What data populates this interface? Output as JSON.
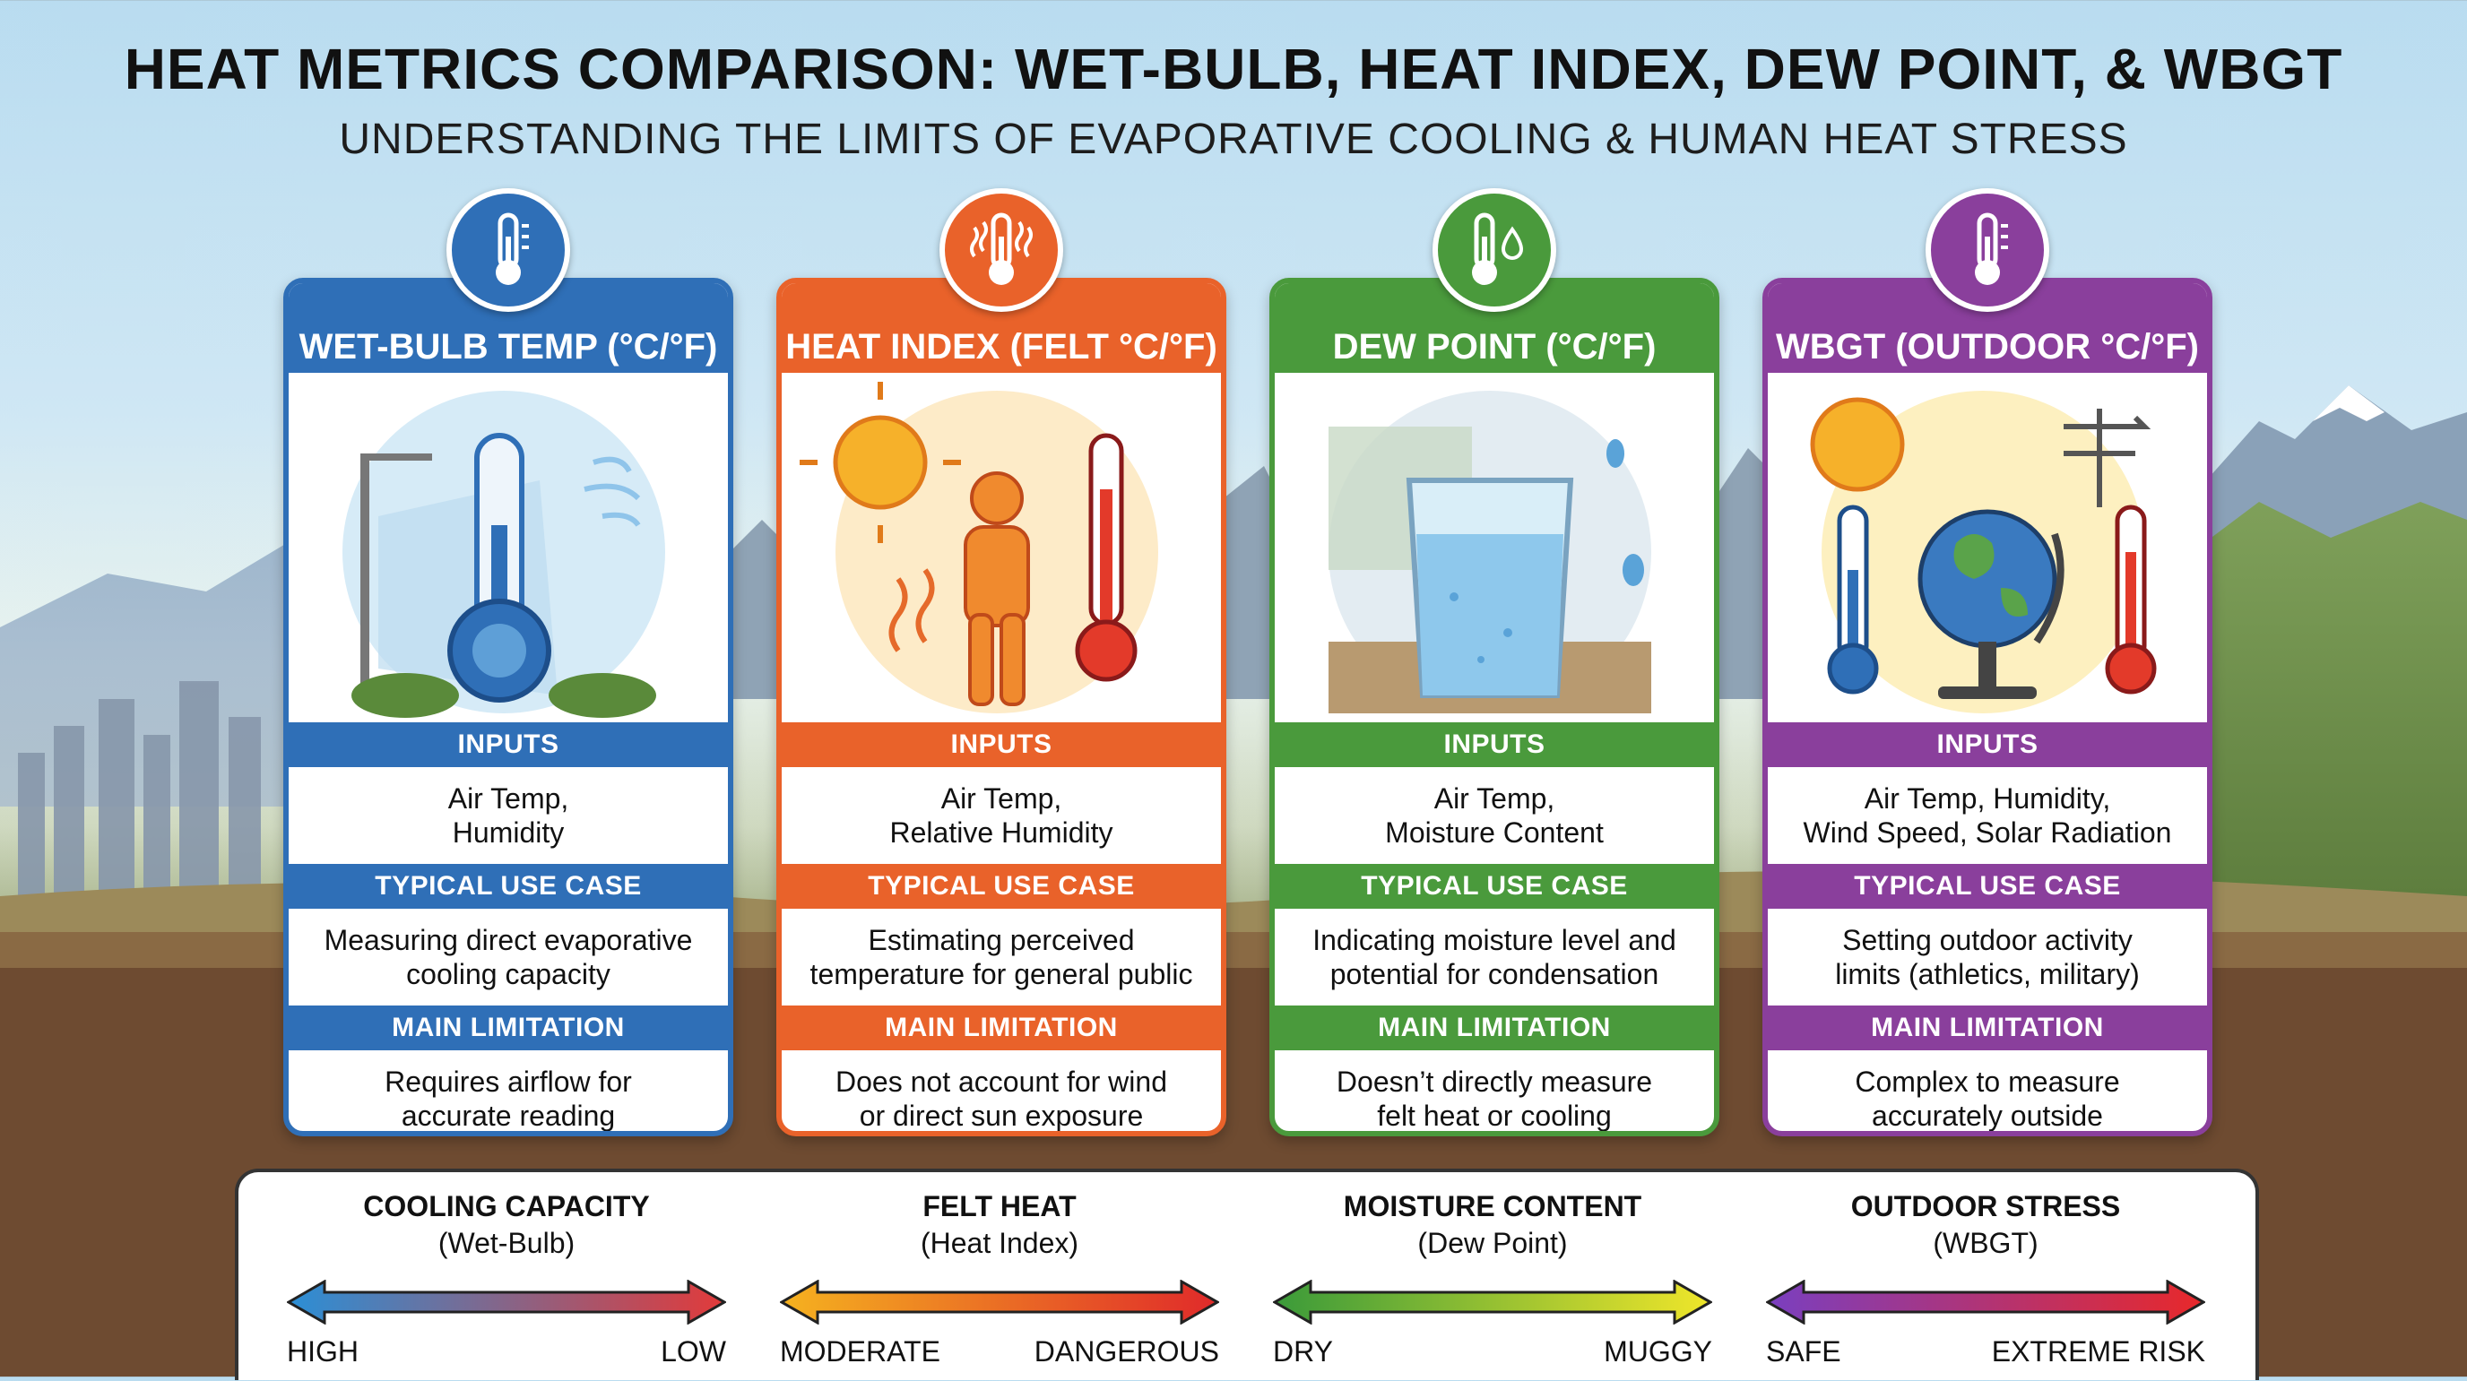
{
  "header": {
    "title": "HEAT METRICS COMPARISON: WET-BULB, HEAT INDEX, DEW POINT, & WBGT",
    "subtitle": "UNDERSTANDING THE LIMITS OF EVAPORATIVE COOLING & HUMAN HEAT STRESS"
  },
  "section_labels": {
    "inputs": "INPUTS",
    "use_case": "TYPICAL USE CASE",
    "limitation": "MAIN LIMITATION"
  },
  "cards": [
    {
      "title": "WET-BULB TEMP (°C/°F)",
      "color": "#2f6fb7",
      "icon": "thermometer-icon",
      "inputs": [
        "Air Temp,",
        "Humidity"
      ],
      "use_case": [
        "Measuring direct evaporative",
        "cooling capacity"
      ],
      "limitation": [
        "Requires airflow for",
        "accurate reading"
      ]
    },
    {
      "title": "HEAT INDEX (FELT °C/°F)",
      "color": "#e9622a",
      "icon": "heat-thermometer-icon",
      "inputs": [
        "Air Temp,",
        "Relative Humidity"
      ],
      "use_case": [
        "Estimating perceived",
        "temperature for general public"
      ],
      "limitation": [
        "Does not account for wind",
        "or direct sun exposure"
      ]
    },
    {
      "title": "DEW POINT (°C/°F)",
      "color": "#4a9a3c",
      "icon": "thermometer-droplet-icon",
      "inputs": [
        "Air Temp,",
        "Moisture Content"
      ],
      "use_case": [
        "Indicating moisture level and",
        "potential for condensation"
      ],
      "limitation": [
        "Doesn’t directly measure",
        "felt heat or cooling"
      ]
    },
    {
      "title": "WBGT (OUTDOOR °C/°F)",
      "color": "#8a3f9c",
      "icon": "thermometer-icon",
      "inputs": [
        "Air Temp, Humidity,",
        "Wind Speed, Solar Radiation"
      ],
      "use_case": [
        "Setting outdoor activity",
        "limits (athletics, military)"
      ],
      "limitation": [
        "Complex to measure",
        "accurately outside"
      ]
    }
  ],
  "legend": [
    {
      "title": "COOLING CAPACITY",
      "sub": "(Wet-Bulb)",
      "low": "HIGH",
      "high": "LOW",
      "colors": [
        "#2b8fd6",
        "#e23a3a"
      ]
    },
    {
      "title": "FELT HEAT",
      "sub": "(Heat Index)",
      "low": "MODERATE",
      "high": "DANGEROUS",
      "colors": [
        "#f5b21f",
        "#e02a2a"
      ]
    },
    {
      "title": "MOISTURE CONTENT",
      "sub": "(Dew Point)",
      "low": "DRY",
      "high": "MUGGY",
      "colors": [
        "#3a9a3a",
        "#f0e62a"
      ]
    },
    {
      "title": "OUTDOOR STRESS",
      "sub": "(WBGT)",
      "low": "SAFE",
      "high": "EXTREME RISK",
      "colors": [
        "#7a3fc0",
        "#e8282a"
      ]
    }
  ]
}
